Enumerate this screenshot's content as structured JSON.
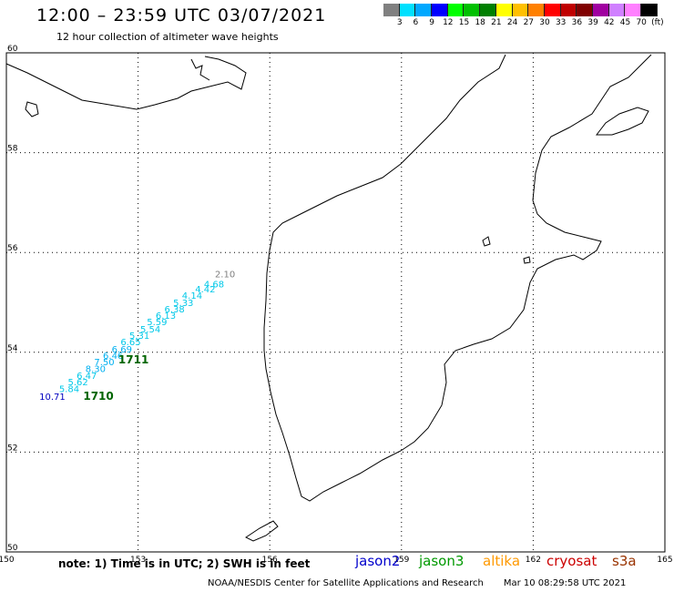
{
  "header": {
    "title": "12:00 – 23:59 UTC 03/07/2021",
    "subtitle": "12 hour collection of altimeter wave heights"
  },
  "color_scale": {
    "unit": "(ft)",
    "colors": [
      "#808080",
      "#00e0ff",
      "#00a8ff",
      "#0000ff",
      "#00ff00",
      "#00c000",
      "#008000",
      "#ffff00",
      "#ffc000",
      "#ff8000",
      "#ff0000",
      "#c00000",
      "#800000",
      "#a000a0",
      "#d080ff",
      "#ff80ff",
      "#000000"
    ],
    "labels": [
      "3",
      "6",
      "9",
      "12",
      "15",
      "18",
      "21",
      "24",
      "27",
      "30",
      "33",
      "36",
      "39",
      "42",
      "45",
      "70"
    ]
  },
  "map": {
    "lon_ticks": [
      "150",
      "153",
      "156",
      "159",
      "162",
      "165"
    ],
    "lat_ticks": [
      "50",
      "52",
      "54",
      "56",
      "58",
      "60"
    ],
    "wave_labels": [
      {
        "text": "2.10",
        "lon": 154.75,
        "lat": 55.5,
        "color": "#808080"
      },
      {
        "text": "4.68",
        "lon": 154.5,
        "lat": 55.3,
        "color": "#00c8e8"
      },
      {
        "text": "4.42",
        "lon": 154.3,
        "lat": 55.2,
        "color": "#00c8e8"
      },
      {
        "text": "4.14",
        "lon": 154.0,
        "lat": 55.07,
        "color": "#00c8e8"
      },
      {
        "text": "5.33",
        "lon": 153.8,
        "lat": 54.93,
        "color": "#00c8e8"
      },
      {
        "text": "6.38",
        "lon": 153.6,
        "lat": 54.8,
        "color": "#00c8e8"
      },
      {
        "text": "6.13",
        "lon": 153.4,
        "lat": 54.67,
        "color": "#00c8e8"
      },
      {
        "text": "5.59",
        "lon": 153.2,
        "lat": 54.54,
        "color": "#00c8e8"
      },
      {
        "text": "5.54",
        "lon": 153.05,
        "lat": 54.4,
        "color": "#00c8e8"
      },
      {
        "text": "5.31",
        "lon": 152.8,
        "lat": 54.27,
        "color": "#00c8e8"
      },
      {
        "text": "6.65",
        "lon": 152.6,
        "lat": 54.14,
        "color": "#00c8e8"
      },
      {
        "text": "6.69",
        "lon": 152.4,
        "lat": 54.0,
        "color": "#00b0f0"
      },
      {
        "text": "6.46",
        "lon": 152.2,
        "lat": 53.87,
        "color": "#00b0f0"
      },
      {
        "text": "7.50",
        "lon": 152.0,
        "lat": 53.74,
        "color": "#00b0f0"
      },
      {
        "text": "8.30",
        "lon": 151.8,
        "lat": 53.6,
        "color": "#00b0f0"
      },
      {
        "text": "6.47",
        "lon": 151.6,
        "lat": 53.47,
        "color": "#00c8e8"
      },
      {
        "text": "5.62",
        "lon": 151.4,
        "lat": 53.34,
        "color": "#00c8e8"
      },
      {
        "text": "5.84",
        "lon": 151.2,
        "lat": 53.2,
        "color": "#00c8e8"
      },
      {
        "text": "10.71",
        "lon": 150.75,
        "lat": 53.05,
        "color": "#0000c0"
      },
      {
        "text": "1711",
        "lon": 152.55,
        "lat": 53.78,
        "color": "#006400"
      },
      {
        "text": "1710",
        "lon": 151.75,
        "lat": 53.05,
        "color": "#006400"
      }
    ]
  },
  "footer": {
    "note": "note: 1) Time is in UTC; 2) SWH is in feet",
    "satellites": [
      {
        "name": "jason2",
        "color": "#0000cc"
      },
      {
        "name": "jason3",
        "color": "#009900"
      },
      {
        "name": "altika",
        "color": "#ff9900"
      },
      {
        "name": "cryosat",
        "color": "#cc0000"
      },
      {
        "name": "s3a",
        "color": "#993300"
      }
    ],
    "credit": "NOAA/NESDIS Center for Satellite Applications and Research",
    "timestamp": "Mar 10 08:29:58 UTC 2021"
  }
}
